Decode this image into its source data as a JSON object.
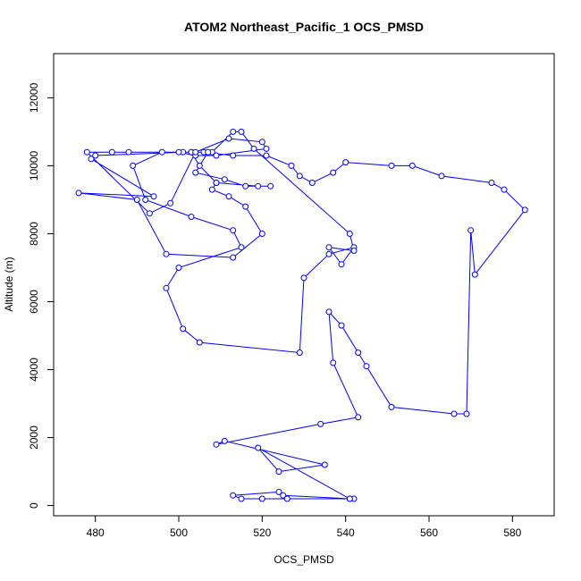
{
  "chart_data": {
    "type": "line",
    "title": "ATOM2 Northeast_Pacific_1 OCS_PMSD",
    "xlabel": "OCS_PMSD",
    "ylabel": "Altitude (m)",
    "xlim": [
      470,
      590
    ],
    "ylim": [
      -300,
      13300
    ],
    "xticks": [
      480,
      500,
      520,
      540,
      560,
      580
    ],
    "yticks": [
      0,
      2000,
      4000,
      6000,
      8000,
      10000,
      12000
    ],
    "point_style": "open-circle",
    "line_color": "#0000ff",
    "series": [
      {
        "x": [
          542,
          541,
          525,
          524,
          513,
          515,
          520,
          526,
          541,
          519,
          524,
          535,
          511,
          509,
          534,
          543,
          537,
          536,
          539,
          543,
          545,
          551,
          566,
          569,
          570,
          571,
          583,
          578,
          575,
          563,
          556,
          551,
          540,
          537,
          532,
          529,
          527,
          521,
          513,
          506,
          503,
          496,
          489,
          492,
          503,
          513,
          515,
          500,
          497,
          501,
          505,
          529,
          530,
          536,
          542,
          539,
          536,
          542,
          541,
          518,
          515,
          513,
          508,
          503,
          505,
          509,
          508,
          512,
          516,
          520,
          513,
          497,
          490,
          476,
          494,
          479,
          480,
          501,
          500,
          504,
          509,
          521,
          520,
          512,
          504,
          498,
          493,
          478,
          484,
          488,
          507,
          504,
          511,
          516,
          522,
          519,
          509
        ],
        "y": [
          200,
          200,
          300,
          400,
          300,
          200,
          200,
          200,
          200,
          1700,
          1000,
          1200,
          1900,
          1800,
          2400,
          2600,
          4200,
          5700,
          5300,
          4500,
          4100,
          2900,
          2700,
          2700,
          8100,
          6800,
          8700,
          9300,
          9500,
          9700,
          10000,
          10000,
          10100,
          9800,
          9500,
          9700,
          10000,
          10300,
          10300,
          10400,
          10400,
          10400,
          10000,
          9000,
          8500,
          8100,
          7600,
          7000,
          6400,
          5200,
          4800,
          4500,
          6700,
          7400,
          7600,
          7100,
          7600,
          7500,
          8000,
          10500,
          11000,
          11000,
          10400,
          10400,
          10000,
          9500,
          9300,
          9100,
          8800,
          8000,
          7300,
          7400,
          9000,
          9200,
          9100,
          10200,
          10300,
          10400,
          10400,
          10300,
          10300,
          10500,
          10700,
          10800,
          10400,
          8900,
          8600,
          10400,
          10400,
          10400,
          10400,
          9800,
          9600,
          9400,
          9400,
          9400,
          9500
        ]
      }
    ]
  }
}
